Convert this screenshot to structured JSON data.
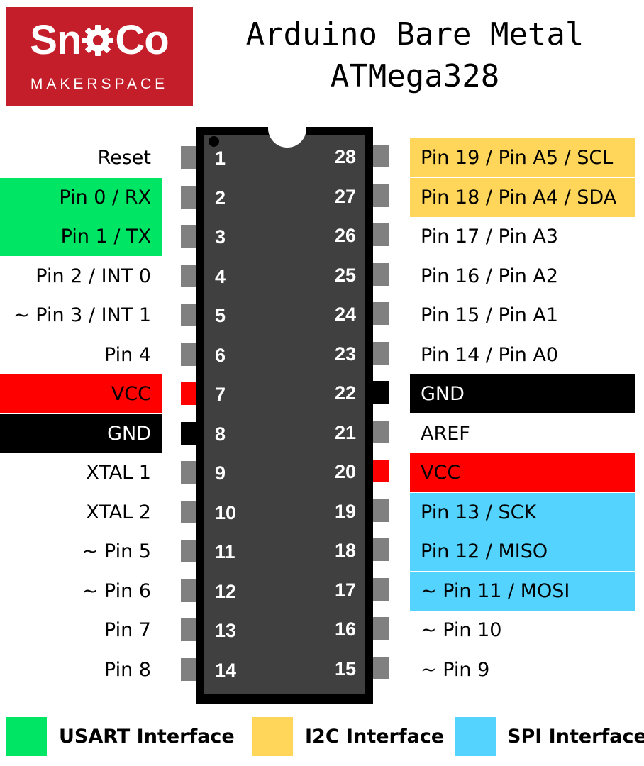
{
  "logo": {
    "brand_left": "Sn",
    "brand_right": "Co",
    "subtitle": "MAKERSPACE"
  },
  "title": {
    "line1": "Arduino Bare Metal",
    "line2": "ATMega328"
  },
  "colors": {
    "usart": "#00e664",
    "i2c": "#ffd65a",
    "spi": "#55d3ff",
    "power": "#ff0000",
    "ground": "#000000",
    "logo": "#c41e2a",
    "chip_body": "#404040"
  },
  "left_pins": [
    {
      "number": "1",
      "label": "Reset",
      "highlight": "none"
    },
    {
      "number": "2",
      "label": "Pin 0 / RX",
      "highlight": "usart"
    },
    {
      "number": "3",
      "label": "Pin 1 / TX",
      "highlight": "usart"
    },
    {
      "number": "4",
      "label": "Pin 2 / INT 0",
      "highlight": "none"
    },
    {
      "number": "5",
      "label": "~ Pin 3 / INT 1",
      "highlight": "none"
    },
    {
      "number": "6",
      "label": "Pin 4",
      "highlight": "none"
    },
    {
      "number": "7",
      "label": "VCC",
      "highlight": "power"
    },
    {
      "number": "8",
      "label": "GND",
      "highlight": "ground"
    },
    {
      "number": "9",
      "label": "XTAL 1",
      "highlight": "none"
    },
    {
      "number": "10",
      "label": "XTAL 2",
      "highlight": "none"
    },
    {
      "number": "11",
      "label": "~ Pin 5",
      "highlight": "none"
    },
    {
      "number": "12",
      "label": "~ Pin 6",
      "highlight": "none"
    },
    {
      "number": "13",
      "label": "Pin 7",
      "highlight": "none"
    },
    {
      "number": "14",
      "label": "Pin 8",
      "highlight": "none"
    }
  ],
  "right_pins": [
    {
      "number": "28",
      "label": "Pin 19 / Pin A5 / SCL",
      "highlight": "i2c"
    },
    {
      "number": "27",
      "label": "Pin 18 / Pin A4 / SDA",
      "highlight": "i2c"
    },
    {
      "number": "26",
      "label": "Pin 17 / Pin A3",
      "highlight": "none"
    },
    {
      "number": "25",
      "label": "Pin 16 / Pin A2",
      "highlight": "none"
    },
    {
      "number": "24",
      "label": "Pin 15 / Pin A1",
      "highlight": "none"
    },
    {
      "number": "23",
      "label": "Pin 14 / Pin A0",
      "highlight": "none"
    },
    {
      "number": "22",
      "label": "GND",
      "highlight": "ground"
    },
    {
      "number": "21",
      "label": "AREF",
      "highlight": "none"
    },
    {
      "number": "20",
      "label": "VCC",
      "highlight": "power"
    },
    {
      "number": "19",
      "label": "Pin 13 / SCK",
      "highlight": "spi"
    },
    {
      "number": "18",
      "label": "Pin 12 / MISO",
      "highlight": "spi"
    },
    {
      "number": "17",
      "label": "~ Pin 11 / MOSI",
      "highlight": "spi"
    },
    {
      "number": "16",
      "label": "~ Pin 10",
      "highlight": "none"
    },
    {
      "number": "15",
      "label": "~ Pin 9",
      "highlight": "none"
    }
  ],
  "legend": [
    {
      "key": "usart",
      "label": "USART Interface"
    },
    {
      "key": "i2c",
      "label": "I2C Interface"
    },
    {
      "key": "spi",
      "label": "SPI Interface"
    }
  ]
}
